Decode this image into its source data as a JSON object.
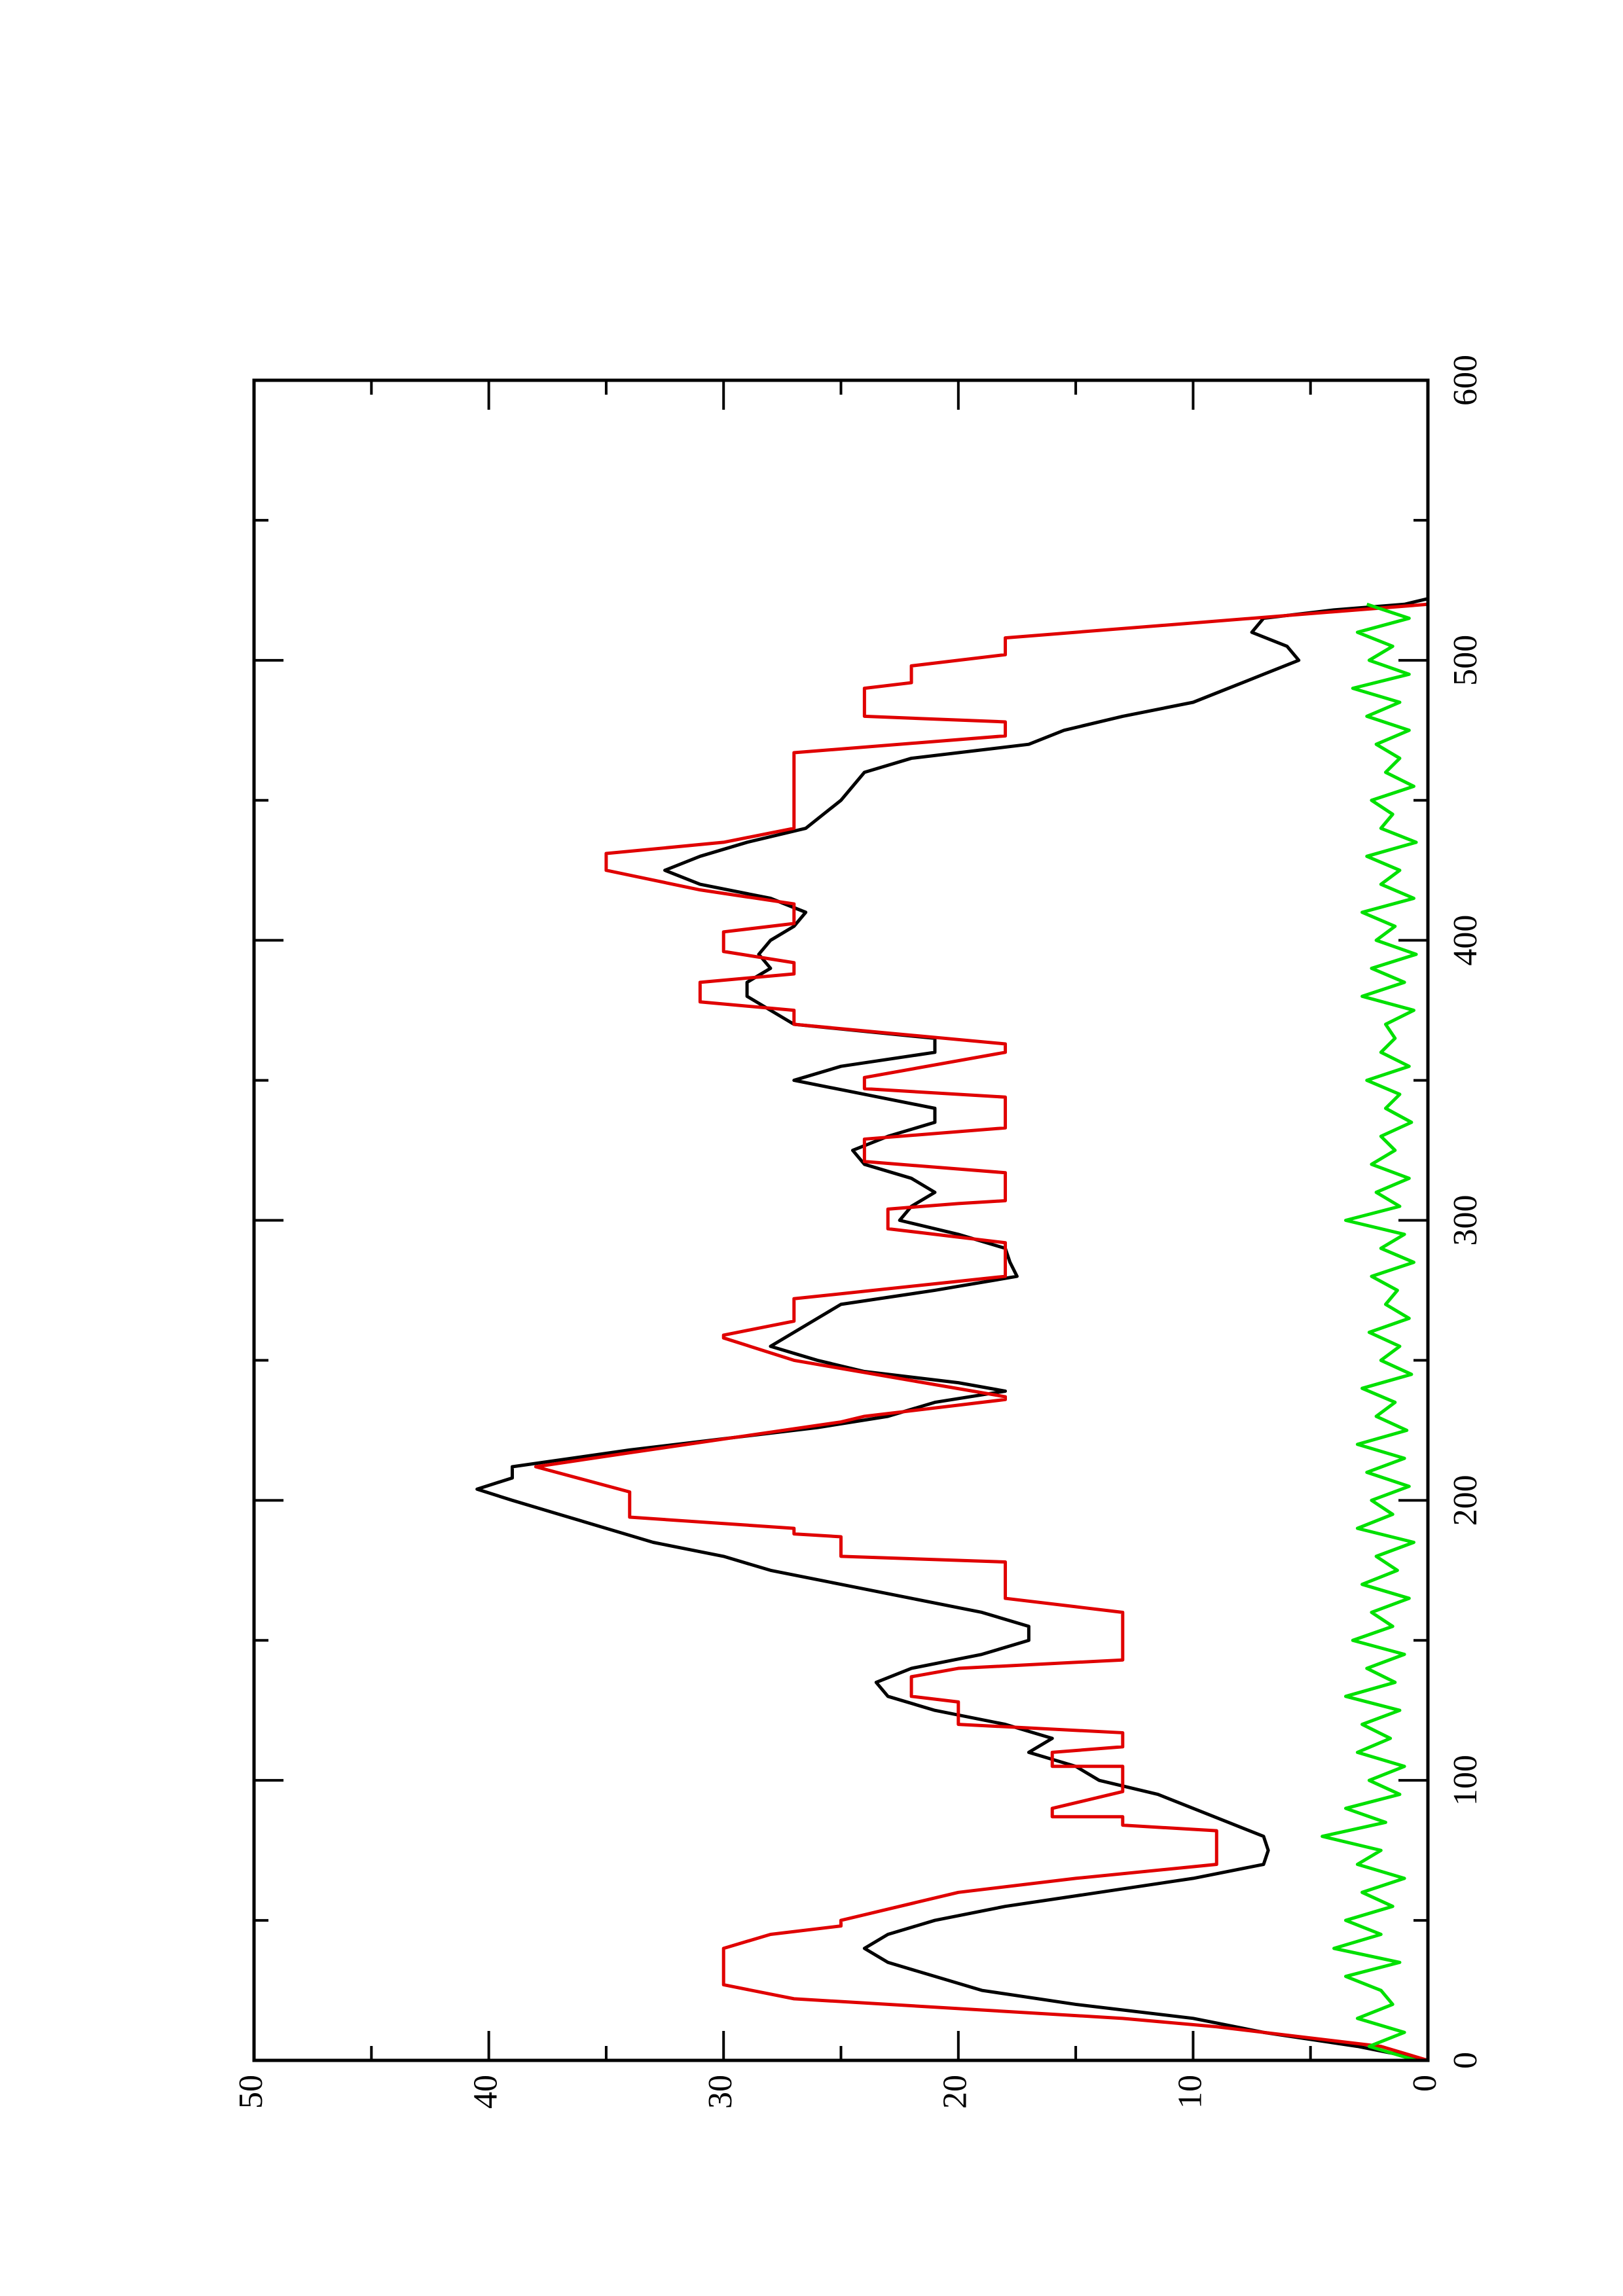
{
  "chart_data": {
    "type": "line",
    "xlim": [
      0,
      600
    ],
    "xticks": [
      0,
      100,
      200,
      300,
      400,
      500,
      600
    ],
    "xminorticks": [
      50,
      150,
      250,
      350,
      450,
      550
    ],
    "ylim": [
      0,
      50
    ],
    "yticks": [
      0,
      10,
      20,
      30,
      40,
      50
    ],
    "yminorticks": [
      5,
      15,
      25,
      35,
      45
    ],
    "series": [
      {
        "color": "#000000",
        "x": [
          0,
          5,
          10,
          15,
          20,
          25,
          30,
          35,
          40,
          45,
          50,
          55,
          60,
          65,
          70,
          75,
          80,
          85,
          90,
          95,
          100,
          105,
          110,
          115,
          120,
          125,
          130,
          135,
          140,
          145,
          150,
          155,
          160,
          165,
          170,
          175,
          180,
          185,
          190,
          195,
          200,
          204,
          208,
          212,
          218,
          222,
          226,
          230,
          235,
          239,
          242,
          246,
          250,
          255,
          260,
          265,
          270,
          275,
          280,
          285,
          290,
          295,
          300,
          305,
          310,
          315,
          320,
          325,
          330,
          335,
          340,
          345,
          350,
          355,
          360,
          365,
          370,
          375,
          380,
          385,
          390,
          395,
          400,
          405,
          410,
          415,
          420,
          425,
          430,
          435,
          440,
          450,
          460,
          465,
          470,
          475,
          480,
          485,
          490,
          495,
          500,
          505,
          510,
          515,
          518,
          520,
          522
        ],
        "values": [
          0,
          3,
          7,
          10,
          15,
          19,
          21,
          23,
          24,
          23,
          21,
          18,
          14,
          10,
          7,
          6.8,
          7,
          8.5,
          10,
          11.5,
          14,
          15,
          17,
          16,
          18,
          21,
          23,
          23.5,
          22,
          19,
          17,
          17,
          19,
          22,
          25,
          28,
          30,
          33,
          35,
          37,
          39,
          40.5,
          39,
          39,
          34,
          30,
          26,
          23,
          21,
          18,
          20,
          24,
          26,
          28,
          27,
          26,
          25,
          21,
          17.5,
          17.8,
          18,
          20,
          22.5,
          22,
          21,
          22,
          24,
          24.5,
          23,
          21,
          21,
          24,
          27,
          25,
          21,
          21,
          27,
          28,
          29,
          29,
          28,
          28.5,
          28,
          27,
          26.5,
          28,
          31,
          32.5,
          31,
          29,
          26.5,
          25,
          24,
          22,
          17,
          15.5,
          13,
          10,
          8.5,
          7,
          5.5,
          6,
          7.5,
          7,
          4,
          1,
          0
        ]
      },
      {
        "color": "#e00000",
        "x": [
          0,
          5,
          12,
          15,
          22,
          27,
          40,
          45,
          48,
          50,
          60,
          65,
          70,
          82,
          84,
          87,
          87,
          90,
          96,
          105,
          105,
          110,
          112,
          117,
          120,
          128,
          130,
          137,
          140,
          143,
          160,
          162,
          165,
          178,
          180,
          187,
          188,
          190,
          194,
          203,
          212,
          217,
          228,
          230,
          236,
          237,
          250,
          258,
          259,
          264,
          272,
          280,
          292,
          297,
          304,
          306,
          307,
          317,
          321,
          329,
          333,
          344,
          347,
          351,
          360,
          363,
          370,
          375,
          378,
          385,
          388,
          392,
          396,
          403,
          406,
          413,
          418,
          425,
          431,
          435,
          440,
          467,
          473,
          478,
          480,
          490,
          492,
          498,
          502,
          508,
          520
        ],
        "values": [
          0,
          2,
          9,
          13,
          27,
          30,
          30,
          28,
          25,
          25,
          20,
          15,
          9,
          9,
          13,
          13,
          16,
          16,
          13,
          13,
          16,
          16,
          13,
          13,
          20,
          20,
          22,
          22,
          20,
          13,
          13,
          15,
          18,
          18,
          25,
          25,
          27,
          27,
          34,
          34,
          38,
          34,
          25,
          24,
          18,
          18,
          27,
          30,
          30,
          27,
          27,
          18,
          18,
          23,
          23,
          20,
          18,
          18,
          24,
          24,
          18,
          18,
          24,
          24,
          18,
          18,
          27,
          27,
          31,
          31,
          27,
          27,
          30,
          30,
          27,
          27,
          31,
          35,
          35,
          30,
          27,
          27,
          18,
          18,
          24,
          24,
          22,
          22,
          18,
          18,
          0
        ]
      },
      {
        "color": "#00e000",
        "x": [
          0,
          5,
          10,
          15,
          20,
          25,
          30,
          35,
          40,
          45,
          50,
          55,
          60,
          65,
          70,
          75,
          80,
          85,
          90,
          95,
          100,
          105,
          110,
          115,
          120,
          125,
          130,
          135,
          140,
          145,
          150,
          155,
          160,
          165,
          170,
          175,
          180,
          185,
          190,
          195,
          200,
          205,
          210,
          215,
          220,
          225,
          230,
          235,
          240,
          245,
          250,
          255,
          260,
          265,
          270,
          275,
          280,
          285,
          290,
          295,
          300,
          305,
          310,
          315,
          320,
          325,
          330,
          335,
          340,
          345,
          350,
          355,
          360,
          365,
          370,
          375,
          380,
          385,
          390,
          395,
          400,
          405,
          410,
          415,
          420,
          425,
          430,
          435,
          440,
          445,
          450,
          455,
          460,
          465,
          470,
          475,
          480,
          485,
          490,
          495,
          500,
          505,
          510,
          515,
          520
        ],
        "values": [
          0.5,
          2.5,
          1,
          3,
          1.5,
          2,
          3.5,
          1.2,
          4,
          2,
          3.5,
          1.5,
          2.8,
          1,
          3,
          2,
          4.5,
          1.8,
          3.5,
          1.2,
          2.5,
          1,
          3,
          1.6,
          2.8,
          1.2,
          3.5,
          1.4,
          2.6,
          1,
          3.2,
          1.5,
          2.4,
          0.8,
          2.8,
          1.3,
          2.2,
          0.6,
          3,
          1.5,
          2.4,
          0.8,
          2.6,
          1,
          3,
          0.9,
          2.2,
          1.4,
          2.8,
          0.7,
          2,
          1.2,
          2.5,
          0.8,
          1.8,
          1.3,
          2.4,
          0.6,
          2,
          1,
          3.5,
          1.2,
          2.2,
          0.8,
          2.4,
          1.4,
          2,
          0.7,
          1.8,
          1.2,
          2.6,
          0.8,
          2,
          1.4,
          1.8,
          0.6,
          2.8,
          1,
          2.4,
          0.5,
          2.2,
          1.4,
          2.8,
          0.6,
          2,
          1.2,
          2.6,
          0.5,
          2,
          1.5,
          2.4,
          0.6,
          1.8,
          1.2,
          2.2,
          0.8,
          2.6,
          1.2,
          3.2,
          0.8,
          2.5,
          1.5,
          3,
          0.8,
          2.6
        ]
      }
    ]
  }
}
